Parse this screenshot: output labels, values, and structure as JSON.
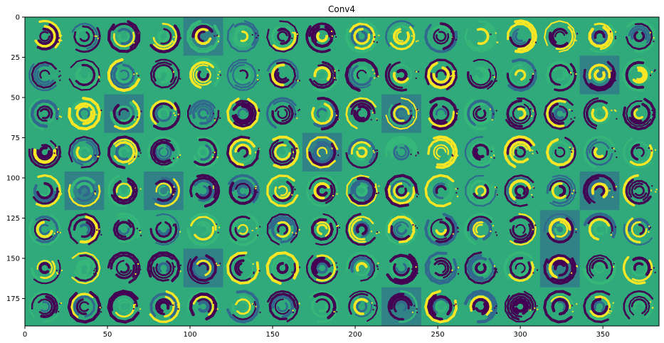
{
  "chart_data": {
    "type": "heatmap",
    "title": "Conv4",
    "xlabel": "",
    "ylabel": "",
    "colormap": "viridis",
    "colors": {
      "low": "#440154",
      "mid_low": "#31688e",
      "mid": "#35b779",
      "high": "#fde725",
      "background": "#2fa37d"
    },
    "grid": false,
    "legend": "none",
    "xlim": [
      0,
      384
    ],
    "ylim": [
      192,
      0
    ],
    "x_ticks": [
      0,
      50,
      100,
      150,
      200,
      250,
      300,
      350
    ],
    "y_ticks": [
      0,
      25,
      50,
      75,
      100,
      125,
      150,
      175
    ],
    "x_tick_labels": [
      "0",
      "50",
      "100",
      "150",
      "200",
      "250",
      "300",
      "350"
    ],
    "y_tick_labels": [
      "0",
      "25",
      "50",
      "75",
      "100",
      "125",
      "150",
      "175"
    ],
    "tile_rows": 8,
    "tile_cols": 16,
    "tile_size": 24,
    "highlighted_tiles": [
      [
        0,
        4
      ],
      [
        1,
        14
      ],
      [
        2,
        2
      ],
      [
        2,
        9
      ],
      [
        3,
        7
      ],
      [
        4,
        1
      ],
      [
        4,
        3
      ],
      [
        4,
        14
      ],
      [
        5,
        13
      ],
      [
        6,
        4
      ],
      [
        6,
        13
      ],
      [
        7,
        9
      ]
    ]
  }
}
